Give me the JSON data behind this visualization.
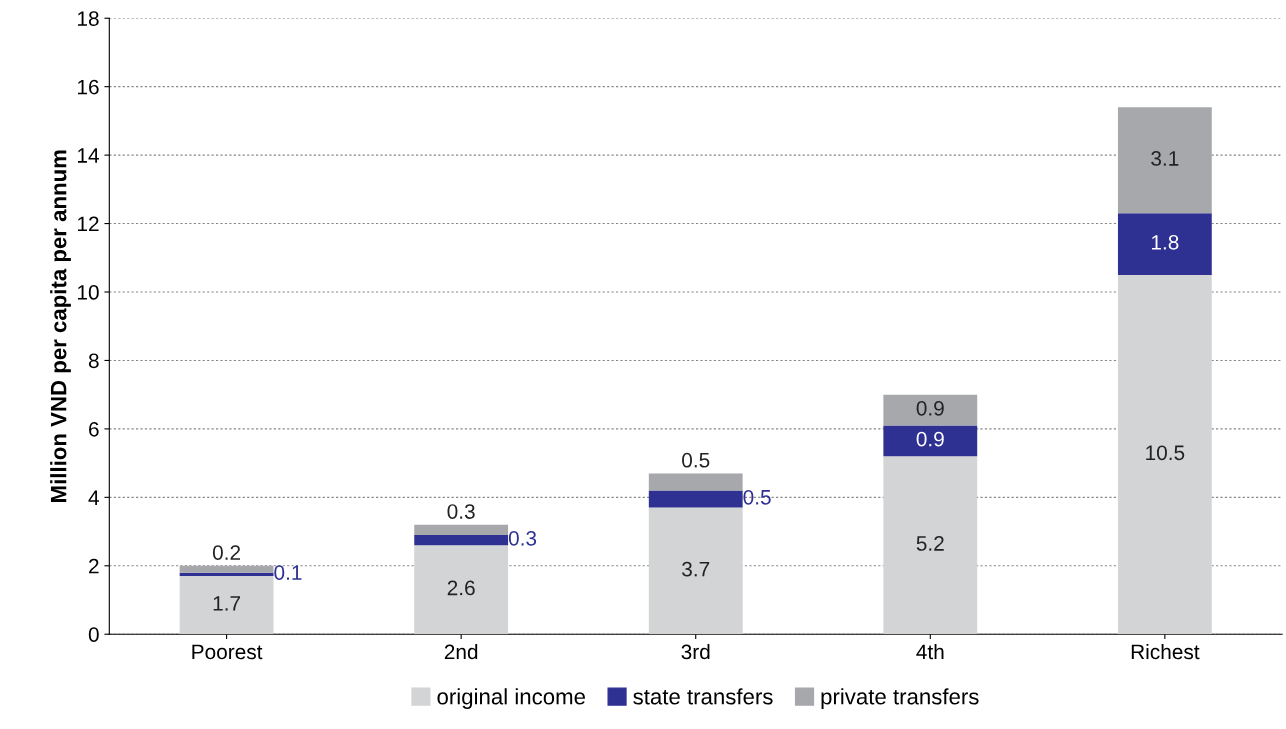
{
  "chart_data": {
    "type": "bar",
    "stacked": true,
    "ylabel": "Million VND per capita per annum",
    "categories": [
      "Poorest",
      "2nd",
      "3rd",
      "4th",
      "Richest"
    ],
    "series": [
      {
        "name": "original income",
        "color": "#d3d4d6",
        "values": [
          1.7,
          2.6,
          3.7,
          5.2,
          10.5
        ]
      },
      {
        "name": "state transfers",
        "color": "#2e3192",
        "values": [
          0.1,
          0.3,
          0.5,
          0.9,
          1.8
        ]
      },
      {
        "name": "private transfers",
        "color": "#a7a8ac",
        "values": [
          0.2,
          0.3,
          0.5,
          0.9,
          3.1
        ]
      }
    ],
    "ylim": [
      0,
      18
    ],
    "yticks": [
      0,
      2,
      4,
      6,
      8,
      10,
      12,
      14,
      16,
      18
    ],
    "grid": "y",
    "legend": "bottom",
    "data_labels": true
  }
}
